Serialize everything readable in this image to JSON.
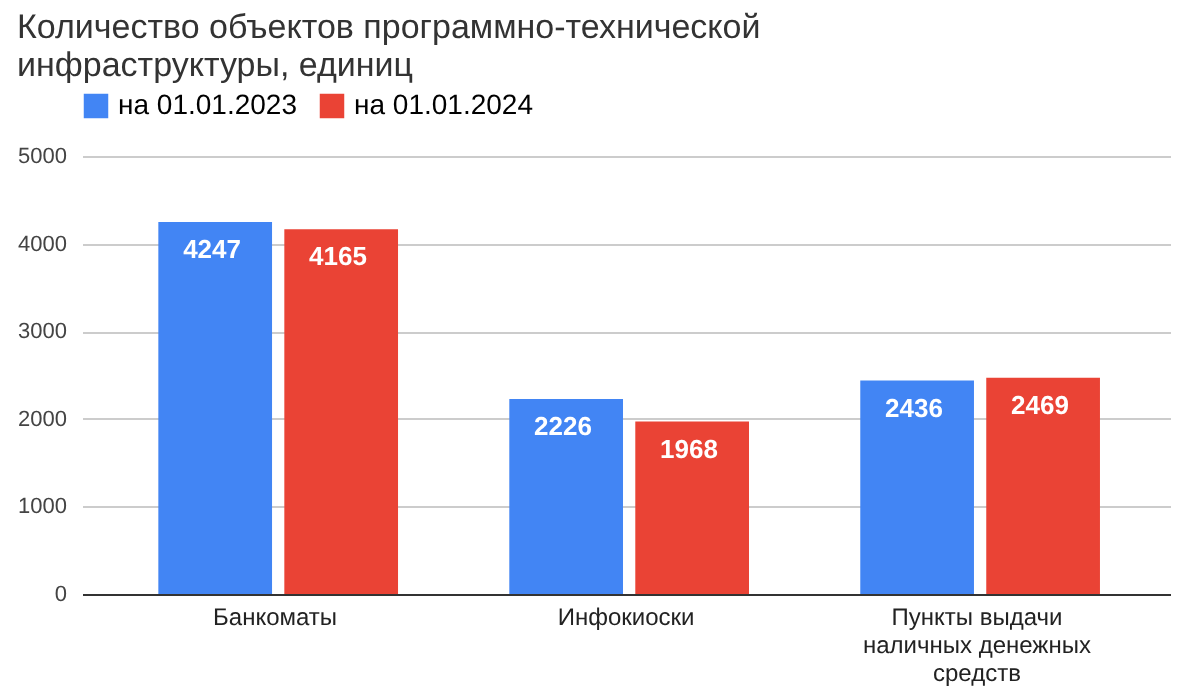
{
  "chart_data": {
    "type": "bar",
    "title": "Количество объектов программно-технической инфраструктуры, единиц",
    "categories": [
      "Банкоматы",
      "Инфокиоски",
      "Пункты выдачи наличных денежных средств"
    ],
    "series": [
      {
        "name": "на 01.01.2023",
        "color": "#4285f4",
        "values": [
          4247,
          2226,
          2436
        ]
      },
      {
        "name": "на 01.01.2024",
        "color": "#ea4335",
        "values": [
          4165,
          1968,
          2469
        ]
      }
    ],
    "ylim": [
      0,
      5000
    ],
    "yticks": [
      0,
      1000,
      2000,
      3000,
      4000,
      5000
    ],
    "grid": "y",
    "legend": "top",
    "data_labels": true
  }
}
